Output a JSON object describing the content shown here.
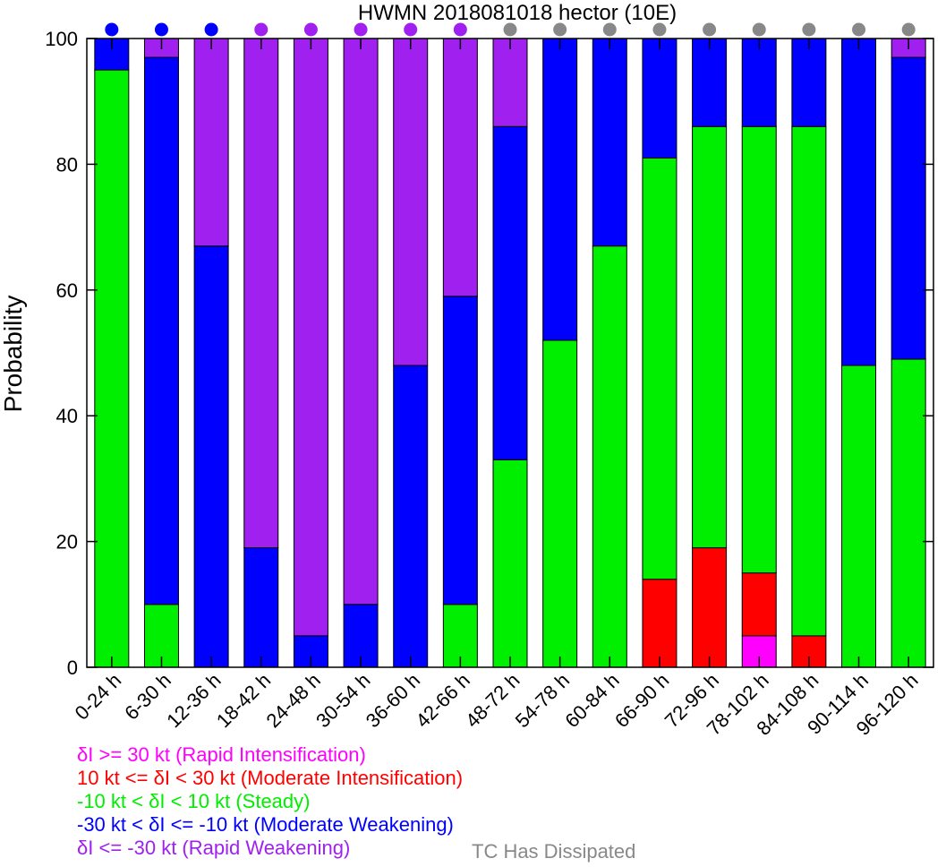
{
  "chart_data": {
    "type": "bar",
    "stacked": true,
    "title": "HWMN 2018081018 hector (10E)",
    "xlabel": "",
    "ylabel": "Probability",
    "ylim": [
      0,
      100
    ],
    "yticks": [
      0,
      20,
      40,
      60,
      80,
      100
    ],
    "categories": [
      "0-24 h",
      "6-30 h",
      "12-36 h",
      "18-42 h",
      "24-48 h",
      "30-54 h",
      "36-60 h",
      "42-66 h",
      "48-72 h",
      "54-78 h",
      "60-84 h",
      "66-90 h",
      "72-96 h",
      "78-102 h",
      "84-108 h",
      "90-114 h",
      "96-120 h"
    ],
    "series": [
      {
        "name": "δI >= 30 kt (Rapid Intensification)",
        "color": "#ff00ff",
        "values": [
          0,
          0,
          0,
          0,
          0,
          0,
          0,
          0,
          0,
          0,
          0,
          0,
          0,
          5,
          0,
          0,
          0
        ]
      },
      {
        "name": "10 kt <= δI < 30 kt (Moderate Intensification)",
        "color": "#ff0000",
        "values": [
          0,
          0,
          0,
          0,
          0,
          0,
          0,
          0,
          0,
          0,
          0,
          14,
          19,
          10,
          5,
          0,
          0
        ]
      },
      {
        "name": "-10 kt < δI < 10 kt (Steady)",
        "color": "#00ee00",
        "values": [
          95,
          10,
          0,
          0,
          0,
          0,
          0,
          10,
          33,
          52,
          67,
          67,
          67,
          71,
          81,
          48,
          49
        ]
      },
      {
        "name": "-30 kt < δI <= -10 kt (Moderate Weakening)",
        "color": "#0000ff",
        "values": [
          5,
          87,
          67,
          19,
          5,
          10,
          48,
          49,
          53,
          48,
          33,
          19,
          14,
          14,
          14,
          52,
          48
        ]
      },
      {
        "name": "δI <= -30 kt (Rapid Weakening)",
        "color": "#a020f0",
        "values": [
          0,
          3,
          33,
          81,
          95,
          90,
          52,
          41,
          14,
          0,
          0,
          0,
          0,
          0,
          0,
          0,
          3
        ]
      }
    ],
    "status_dots": [
      "blue",
      "blue",
      "blue",
      "purple",
      "purple",
      "purple",
      "purple",
      "purple",
      "gray",
      "gray",
      "gray",
      "gray",
      "gray",
      "gray",
      "gray",
      "gray",
      "gray"
    ],
    "status_colors": {
      "blue": "#0000ff",
      "purple": "#a020f0",
      "gray": "#888888"
    },
    "extra_legend": {
      "name": "TC Has Dissipated",
      "color": "#888888"
    }
  }
}
